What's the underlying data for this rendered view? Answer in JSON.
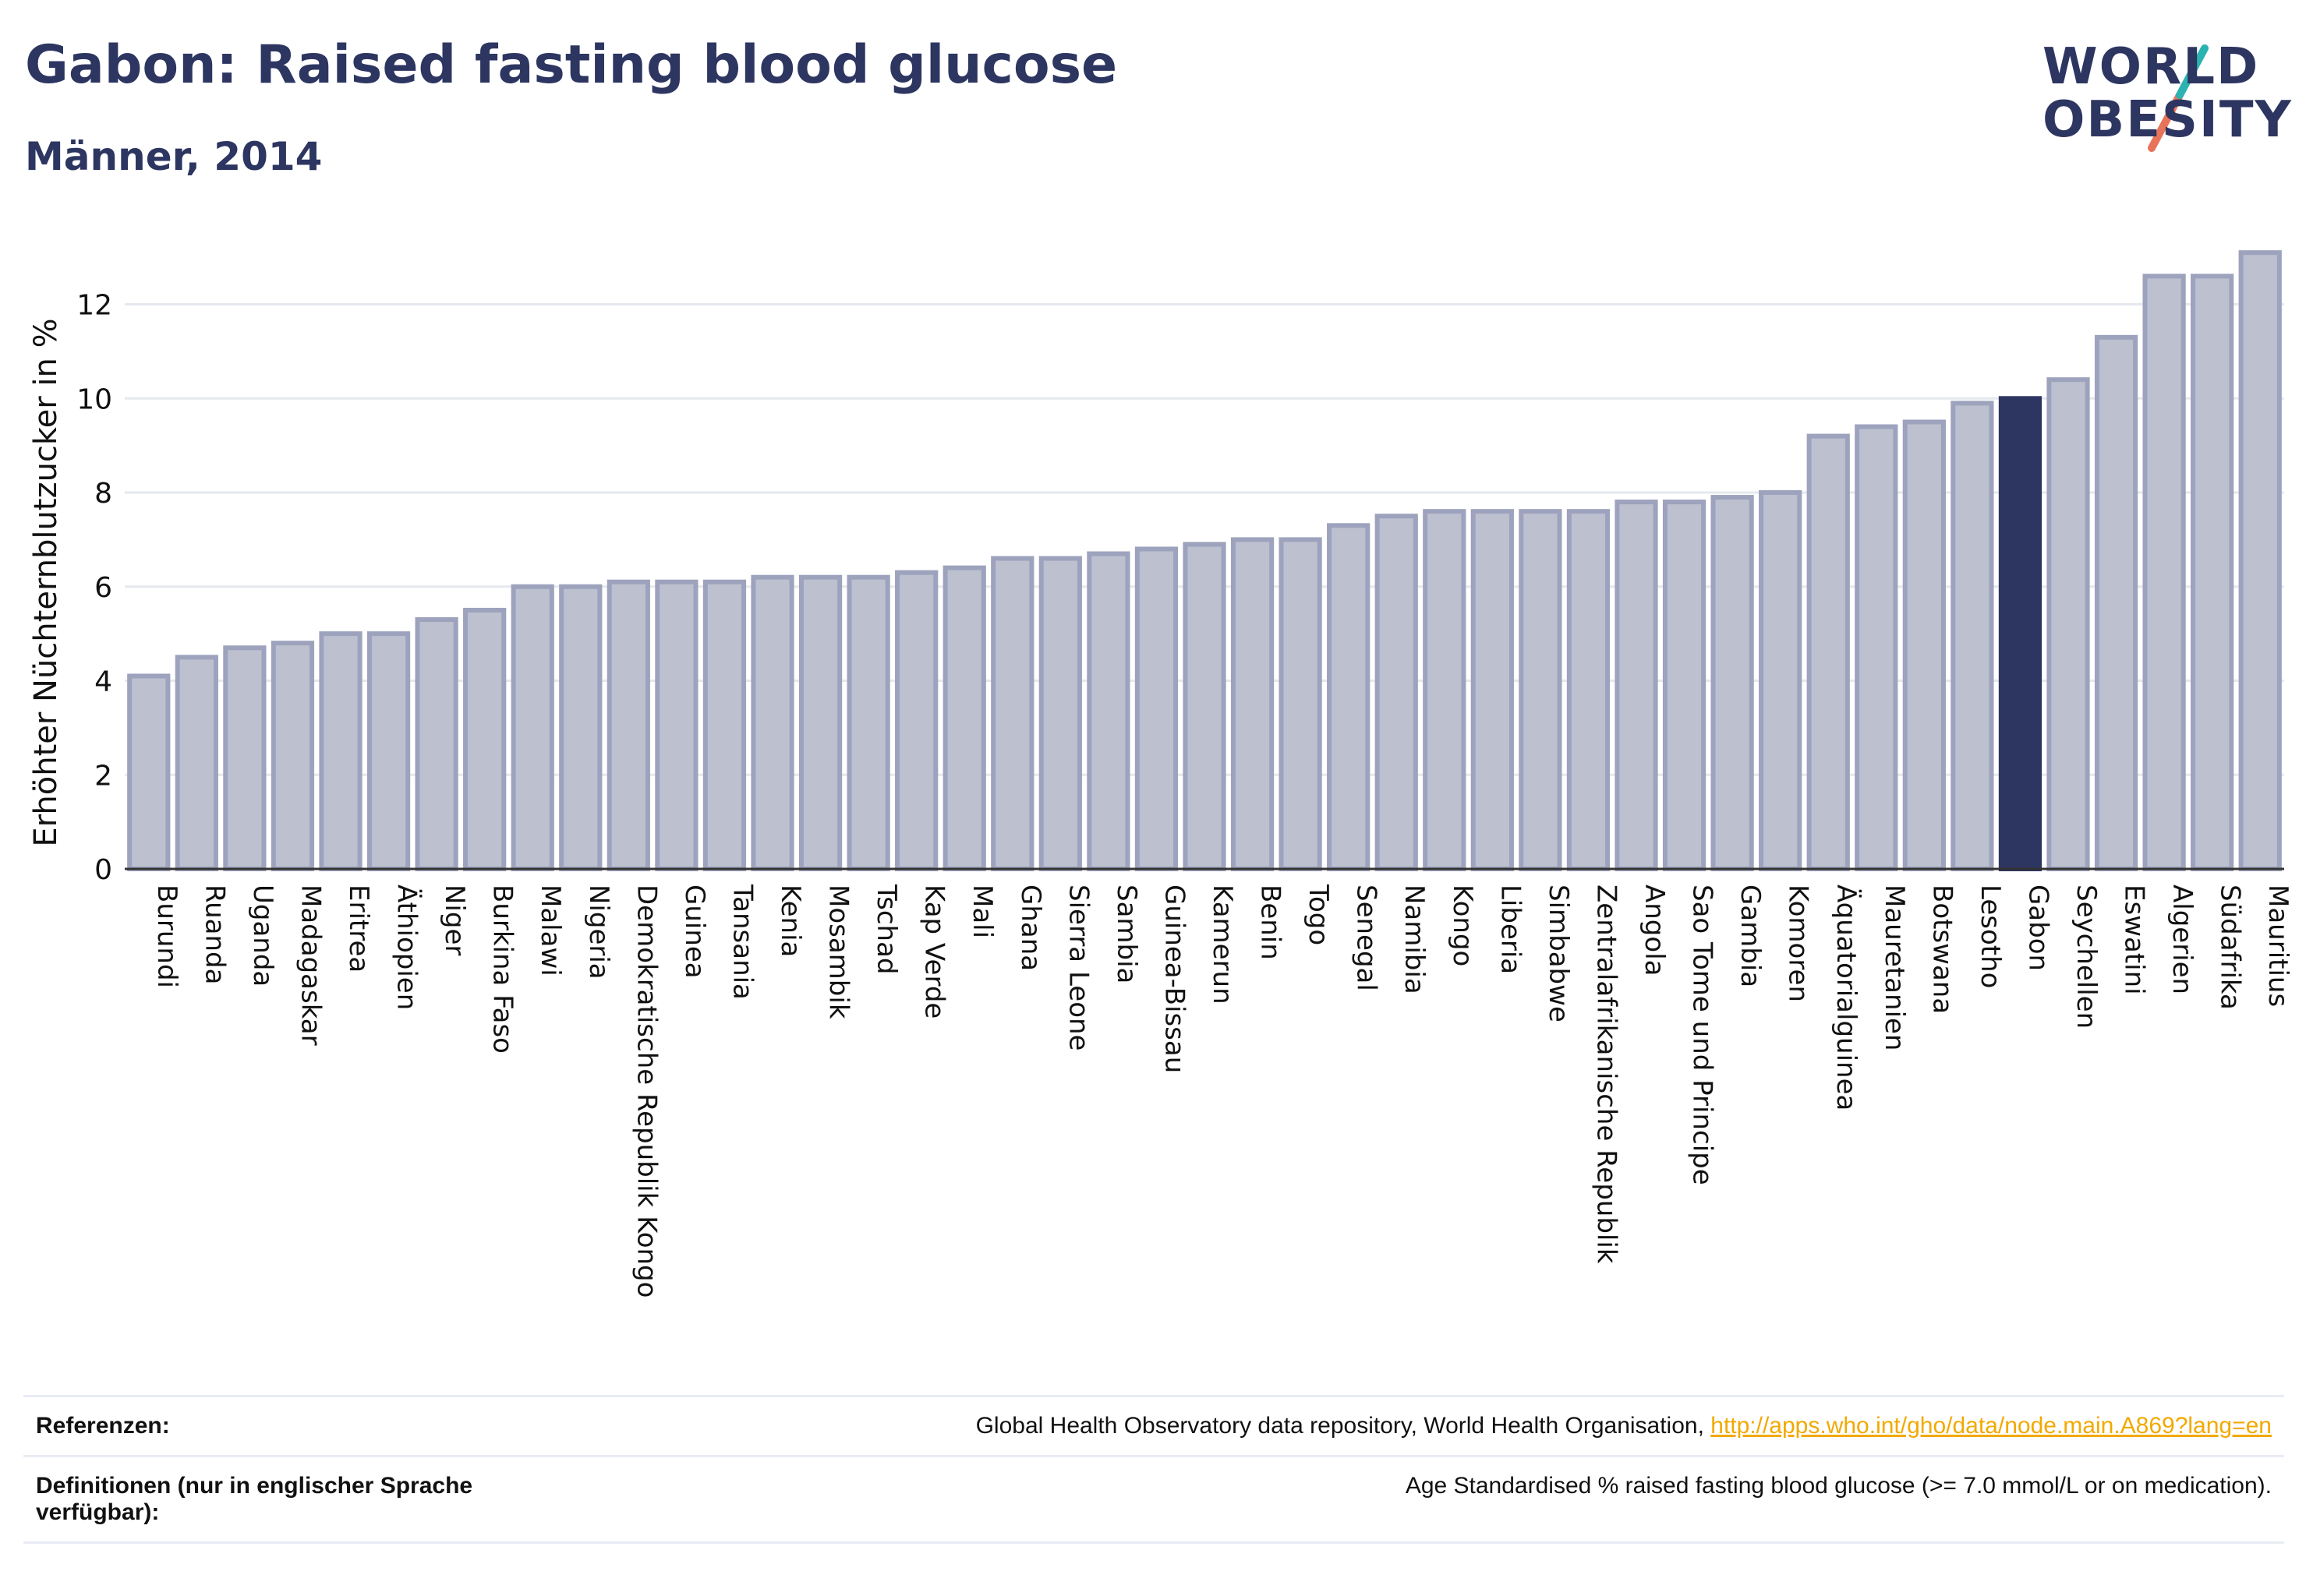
{
  "header": {
    "title": "Gabon: Raised fasting blood glucose",
    "subtitle": "Männer, 2014"
  },
  "logo": {
    "line1": "WORLD",
    "line2": "OBESITY",
    "colors": {
      "text": "#2d3561",
      "slash_top": "#2ab3b1",
      "slash_bottom": "#e8735a"
    }
  },
  "chart_data": {
    "type": "bar",
    "ylabel": "Erhöhter Nüchternblutzucker in %",
    "xlabel": "",
    "ylim": [
      0,
      13.5
    ],
    "yticks": [
      0,
      2,
      4,
      6,
      8,
      10,
      12
    ],
    "grid": true,
    "highlight": "Gabon",
    "colors": {
      "bar": "#bcc0cf",
      "bar_border": "#9da3bd",
      "highlight": "#2d3561",
      "grid": "#e6e8ef"
    },
    "categories": [
      "Burundi",
      "Ruanda",
      "Uganda",
      "Madagaskar",
      "Eritrea",
      "Äthiopien",
      "Niger",
      "Burkina Faso",
      "Malawi",
      "Nigeria",
      "Demokratische Republik Kongo",
      "Guinea",
      "Tansania",
      "Kenia",
      "Mosambik",
      "Tschad",
      "Kap Verde",
      "Mali",
      "Ghana",
      "Sierra Leone",
      "Sambia",
      "Guinea-Bissau",
      "Kamerun",
      "Benin",
      "Togo",
      "Senegal",
      "Namibia",
      "Kongo",
      "Liberia",
      "Simbabwe",
      "Zentralafrikanische Republik",
      "Angola",
      "Sao Tome und Principe",
      "Gambia",
      "Komoren",
      "Äquatorialguinea",
      "Mauretanien",
      "Botswana",
      "Lesotho",
      "Gabon",
      "Seychellen",
      "Eswatini",
      "Algerien",
      "Südafrika",
      "Mauritius"
    ],
    "values": [
      4.1,
      4.5,
      4.7,
      4.8,
      5.0,
      5.0,
      5.3,
      5.5,
      6.0,
      6.0,
      6.1,
      6.1,
      6.1,
      6.2,
      6.2,
      6.2,
      6.3,
      6.4,
      6.6,
      6.6,
      6.7,
      6.8,
      6.9,
      7.0,
      7.0,
      7.3,
      7.5,
      7.6,
      7.6,
      7.6,
      7.6,
      7.8,
      7.8,
      7.9,
      8.0,
      9.2,
      9.4,
      9.5,
      9.9,
      10.0,
      10.4,
      11.3,
      12.6,
      12.6,
      13.1
    ]
  },
  "references": {
    "label": "Referenzen:",
    "text": "Global Health Observatory data repository, World Health Organisation, ",
    "link": "http://apps.who.int/gho/data/node.main.A869?lang=en"
  },
  "definitions": {
    "label": "Definitionen (nur in englischer Sprache verfügbar):",
    "text": "Age Standardised % raised fasting blood glucose (>= 7.0 mmol/L or on medication)."
  }
}
